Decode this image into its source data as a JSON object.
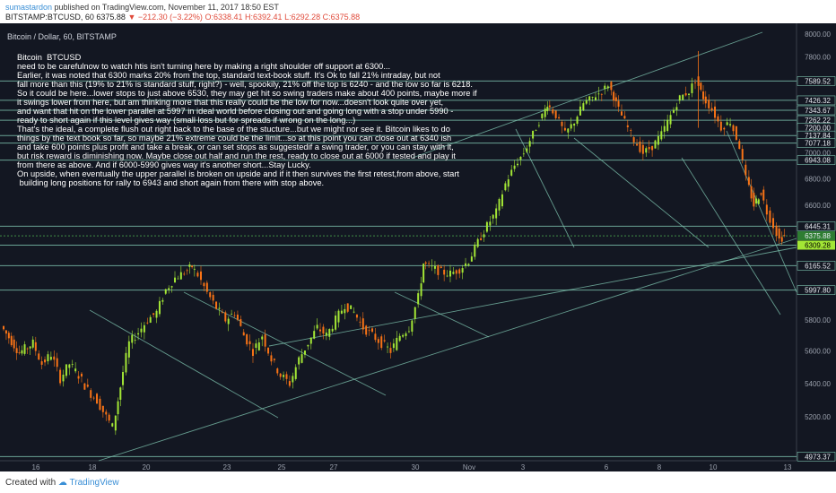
{
  "header": {
    "author": "sumastardon",
    "published_text": "published on TradingView.com, November 11, 2017 18:50 EST",
    "symbol": "BITSTAMP:BTCUSD, 60",
    "last": "6375.88",
    "change": "−212.30 (−3.22%)",
    "open": "O:6338.41",
    "high": "H:6392.41",
    "low": "L:6292.28",
    "close": "C:6375.88"
  },
  "footer": {
    "created_with": "Created with",
    "brand": "TradingView"
  },
  "colors": {
    "background": "#131722",
    "up": "#a3e635",
    "down": "#f97316",
    "trendline": "#7fc6b1",
    "level": "#7fc6b1",
    "dotted_level": "#4caf50"
  },
  "chart_data": {
    "type": "candlestick",
    "title": "Bitcoin / Dollar, 60, BITSTAMP",
    "x_tick_labels": [
      "16",
      "18",
      "20",
      "23",
      "25",
      "27",
      "30",
      "Nov",
      "3",
      "6",
      "8",
      "10",
      "13"
    ],
    "y_ticks": [
      8000,
      7800,
      7000,
      6800,
      6600,
      6000,
      5800,
      5600,
      5400,
      5200
    ],
    "ylim": [
      4950,
      8050
    ],
    "y_scale": "log",
    "level_labels": [
      "7589.52",
      "7426.32",
      "7343.67",
      "7262.22",
      "7200.00",
      "7137.84",
      "7077.18",
      "6943.08",
      "6445.31",
      "6375.88",
      "6309.28",
      "6165.52",
      "5997.80",
      "4973.37"
    ],
    "levels": [
      7589.52,
      7426.32,
      7343.67,
      7262.22,
      7137.84,
      7077.18,
      6943.08,
      6445.31,
      6375.88,
      6309.28,
      6165.52,
      5997.8,
      4973.37
    ],
    "last_price": 6375.88,
    "path": [
      {
        "x": 0,
        "y": 5760
      },
      {
        "x": 20,
        "y": 5590
      },
      {
        "x": 35,
        "y": 5650
      },
      {
        "x": 45,
        "y": 5520
      },
      {
        "x": 55,
        "y": 5580
      },
      {
        "x": 65,
        "y": 5430
      },
      {
        "x": 75,
        "y": 5520
      },
      {
        "x": 85,
        "y": 5450
      },
      {
        "x": 95,
        "y": 5360
      },
      {
        "x": 105,
        "y": 5300
      },
      {
        "x": 115,
        "y": 5200
      },
      {
        "x": 122,
        "y": 5140
      },
      {
        "x": 130,
        "y": 5380
      },
      {
        "x": 140,
        "y": 5650
      },
      {
        "x": 150,
        "y": 5720
      },
      {
        "x": 160,
        "y": 5800
      },
      {
        "x": 170,
        "y": 5850
      },
      {
        "x": 180,
        "y": 6000
      },
      {
        "x": 190,
        "y": 6080
      },
      {
        "x": 200,
        "y": 6120
      },
      {
        "x": 208,
        "y": 6160
      },
      {
        "x": 215,
        "y": 6100
      },
      {
        "x": 225,
        "y": 5980
      },
      {
        "x": 235,
        "y": 5880
      },
      {
        "x": 245,
        "y": 5800
      },
      {
        "x": 255,
        "y": 5850
      },
      {
        "x": 265,
        "y": 5700
      },
      {
        "x": 275,
        "y": 5600
      },
      {
        "x": 285,
        "y": 5700
      },
      {
        "x": 295,
        "y": 5550
      },
      {
        "x": 305,
        "y": 5450
      },
      {
        "x": 315,
        "y": 5400
      },
      {
        "x": 325,
        "y": 5550
      },
      {
        "x": 335,
        "y": 5650
      },
      {
        "x": 345,
        "y": 5750
      },
      {
        "x": 355,
        "y": 5700
      },
      {
        "x": 365,
        "y": 5800
      },
      {
        "x": 375,
        "y": 5900
      },
      {
        "x": 385,
        "y": 5850
      },
      {
        "x": 395,
        "y": 5750
      },
      {
        "x": 405,
        "y": 5700
      },
      {
        "x": 415,
        "y": 5650
      },
      {
        "x": 425,
        "y": 5600
      },
      {
        "x": 435,
        "y": 5700
      },
      {
        "x": 445,
        "y": 5750
      },
      {
        "x": 455,
        "y": 5950
      },
      {
        "x": 460,
        "y": 6180
      },
      {
        "x": 470,
        "y": 6150
      },
      {
        "x": 480,
        "y": 6120
      },
      {
        "x": 490,
        "y": 6110
      },
      {
        "x": 500,
        "y": 6140
      },
      {
        "x": 510,
        "y": 6200
      },
      {
        "x": 520,
        "y": 6330
      },
      {
        "x": 530,
        "y": 6450
      },
      {
        "x": 540,
        "y": 6550
      },
      {
        "x": 550,
        "y": 6760
      },
      {
        "x": 560,
        "y": 6900
      },
      {
        "x": 570,
        "y": 7000
      },
      {
        "x": 580,
        "y": 7150
      },
      {
        "x": 590,
        "y": 7300
      },
      {
        "x": 595,
        "y": 7400
      },
      {
        "x": 605,
        "y": 7300
      },
      {
        "x": 615,
        "y": 7150
      },
      {
        "x": 625,
        "y": 7250
      },
      {
        "x": 635,
        "y": 7400
      },
      {
        "x": 645,
        "y": 7450
      },
      {
        "x": 655,
        "y": 7500
      },
      {
        "x": 662,
        "y": 7560
      },
      {
        "x": 670,
        "y": 7400
      },
      {
        "x": 680,
        "y": 7250
      },
      {
        "x": 690,
        "y": 7100
      },
      {
        "x": 700,
        "y": 7000
      },
      {
        "x": 710,
        "y": 7050
      },
      {
        "x": 720,
        "y": 7150
      },
      {
        "x": 730,
        "y": 7300
      },
      {
        "x": 740,
        "y": 7450
      },
      {
        "x": 750,
        "y": 7500
      },
      {
        "x": 757,
        "y": 7600
      },
      {
        "x": 765,
        "y": 7450
      },
      {
        "x": 775,
        "y": 7350
      },
      {
        "x": 785,
        "y": 7200
      },
      {
        "x": 795,
        "y": 7250
      },
      {
        "x": 805,
        "y": 7050
      },
      {
        "x": 812,
        "y": 6800
      },
      {
        "x": 820,
        "y": 6600
      },
      {
        "x": 828,
        "y": 6700
      },
      {
        "x": 835,
        "y": 6550
      },
      {
        "x": 842,
        "y": 6450
      },
      {
        "x": 848,
        "y": 6350
      },
      {
        "x": 853,
        "y": 6376
      }
    ]
  },
  "annotation": {
    "lines": [
      "Bitcoin  BTCUSD",
      "need to be carefulnow to watch htis isn't turning here by making a right shoulder off support at 6300...",
      "Earlier, it was noted that 6300 marks 20% from the top, standard text-book stuff. It's Ok to fall 21% intraday, but not",
      "fall more than this (19% to 21% is standard stuff, right?) - well, spookily, 21% off the top is 6240 - and the low so far is 6218.",
      "So it could be here...lower stops to just above 6530, they may get hit so swing traders make about 400 points, maybe more if",
      "it swings lower from here, but am thinking more that this really could be the low for now...doesn't look quite over yet,",
      "and want that hit on the lower parallel at 5997 in ideal world before closing out and going long with a stop under 5990 -",
      "ready to short again if this level gives way (small loss but for spreads if wrong on the long...)",
      "That's the ideal, a complete flush out right back to the base of the stucture...but we might nor see it. Bitcoin likes to do",
      "things by the text book so far, so maybe 21% extreme could be the limit...so at this point you can close out at 6340 ish",
      "and take 600 points plus profit and take a break, or can set stops as suggestedif a swing trader, or you can stay with it,",
      "but risk reward is diminishing now. Maybe close out half and run the rest, ready to close out at 6000 if tested and play it",
      "from there as above. And if 6000-5990 gives way it's another short...Stay Lucky.",
      "On upside, when eventually the upper parallel is broken on upside and if it then survives the first retest,from above, start",
      " building long positions for rally to 6943 and short again from there with stop above."
    ]
  }
}
